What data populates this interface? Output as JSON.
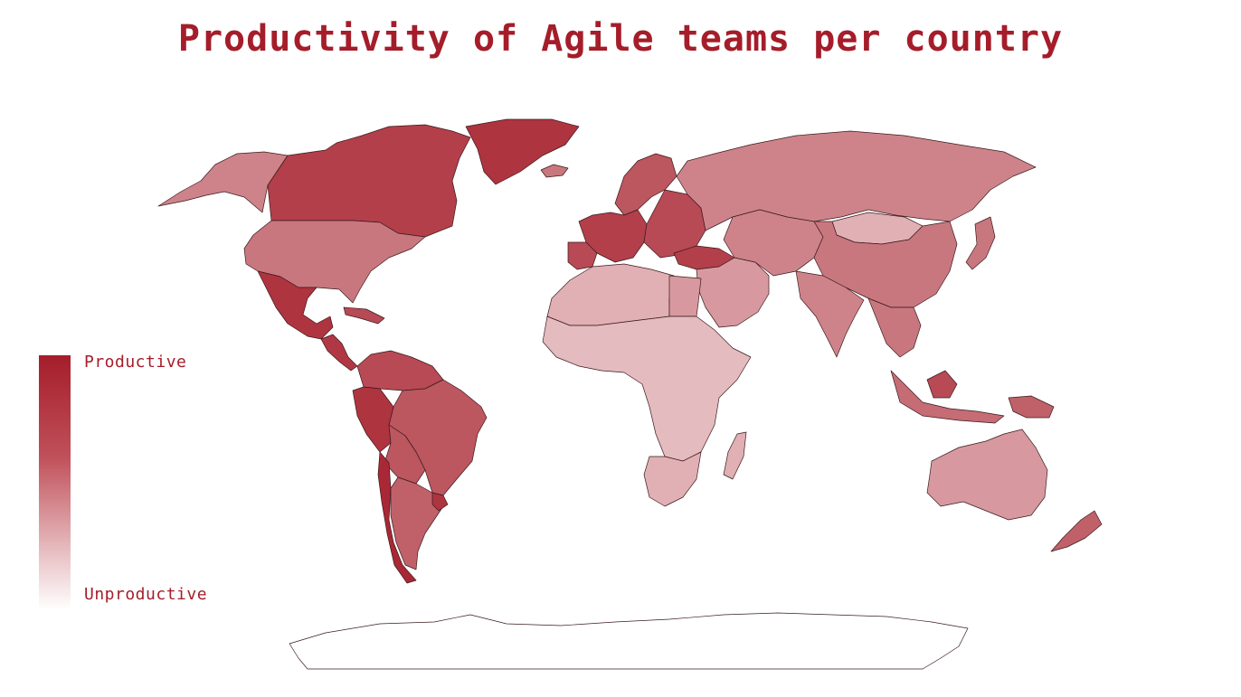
{
  "title": "Productivity of Agile teams per country",
  "legend": {
    "high_label": "Productive",
    "low_label": "Unproductive",
    "high_color": "#a51d2a",
    "low_color": "#ffffff"
  },
  "regions": [
    {
      "id": "alaska",
      "level": 0.55
    },
    {
      "id": "canada",
      "level": 0.85
    },
    {
      "id": "greenland",
      "level": 0.9
    },
    {
      "id": "usa",
      "level": 0.6
    },
    {
      "id": "mexico",
      "level": 0.9
    },
    {
      "id": "central-america",
      "level": 0.88
    },
    {
      "id": "caribbean",
      "level": 0.8
    },
    {
      "id": "south-america-north",
      "level": 0.8
    },
    {
      "id": "brazil",
      "level": 0.75
    },
    {
      "id": "peru-ecuador",
      "level": 0.9
    },
    {
      "id": "bolivia-paraguay",
      "level": 0.75
    },
    {
      "id": "chile",
      "level": 0.95
    },
    {
      "id": "argentina",
      "level": 0.7
    },
    {
      "id": "uruguay",
      "level": 0.9
    },
    {
      "id": "iceland",
      "level": 0.6
    },
    {
      "id": "scandinavia",
      "level": 0.75
    },
    {
      "id": "western-europe",
      "level": 0.85
    },
    {
      "id": "iberia",
      "level": 0.8
    },
    {
      "id": "eastern-europe",
      "level": 0.8
    },
    {
      "id": "turkey",
      "level": 0.85
    },
    {
      "id": "russia",
      "level": 0.55
    },
    {
      "id": "middle-east",
      "level": 0.45
    },
    {
      "id": "north-africa",
      "level": 0.35
    },
    {
      "id": "egypt",
      "level": 0.45
    },
    {
      "id": "sub-saharan-africa",
      "level": 0.3
    },
    {
      "id": "south-africa",
      "level": 0.35
    },
    {
      "id": "madagascar",
      "level": 0.35
    },
    {
      "id": "central-asia",
      "level": 0.55
    },
    {
      "id": "mongolia",
      "level": 0.35
    },
    {
      "id": "china",
      "level": 0.6
    },
    {
      "id": "india",
      "level": 0.55
    },
    {
      "id": "southeast-asia",
      "level": 0.6
    },
    {
      "id": "japan",
      "level": 0.6
    },
    {
      "id": "indonesia",
      "level": 0.65
    },
    {
      "id": "malaysia",
      "level": 0.8
    },
    {
      "id": "papua-new-guinea",
      "level": 0.7
    },
    {
      "id": "australia",
      "level": 0.45
    },
    {
      "id": "new-zealand",
      "level": 0.7
    },
    {
      "id": "antarctica",
      "level": 0.0
    }
  ]
}
